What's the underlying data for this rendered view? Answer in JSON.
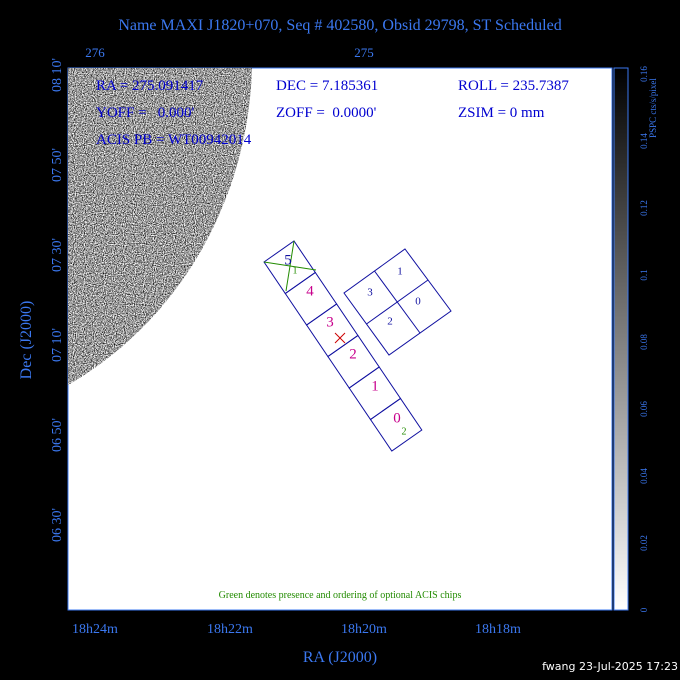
{
  "title": "Name MAXI J1820+070, Seq # 402580, Obsid 29798, ST Scheduled",
  "top_axis": {
    "labels": [
      "276",
      "275"
    ]
  },
  "left_axis": {
    "title": "Dec (J2000)",
    "labels": [
      "08 10'",
      "07 50'",
      "07 30'",
      "07 10'",
      "06 50'",
      "06 30'"
    ]
  },
  "bottom_axis": {
    "title": "RA (J2000)",
    "labels": [
      "18h24m",
      "18h22m",
      "18h20m",
      "18h18m"
    ]
  },
  "info": {
    "ra": "RA = 275.091417",
    "dec": "DEC = 7.185361",
    "roll": "ROLL = 235.7387",
    "yoff": "YOFF =   0.000'",
    "zoff": "ZOFF =  0.0000'",
    "zsim": "ZSIM = 0 mm",
    "acis_pb": "ACIS PB = WT00942014"
  },
  "colorbar": {
    "title": "PSPC cts/s/pixel",
    "labels": [
      "0",
      "0.02",
      "0.04",
      "0.06",
      "0.08",
      "0.1",
      "0.12",
      "0.14",
      "0.16"
    ]
  },
  "acis_i": {
    "labels": [
      "1",
      "3",
      "0",
      "2"
    ]
  },
  "acis_s": {
    "labels": [
      "5",
      "4",
      "3",
      "2",
      "1",
      "0"
    ]
  },
  "optional": {
    "labels": [
      "1",
      "2"
    ]
  },
  "note": "Green denotes presence and ordering of optional ACIS chips",
  "footer": "fwang 23-Jul-2025 17:23"
}
